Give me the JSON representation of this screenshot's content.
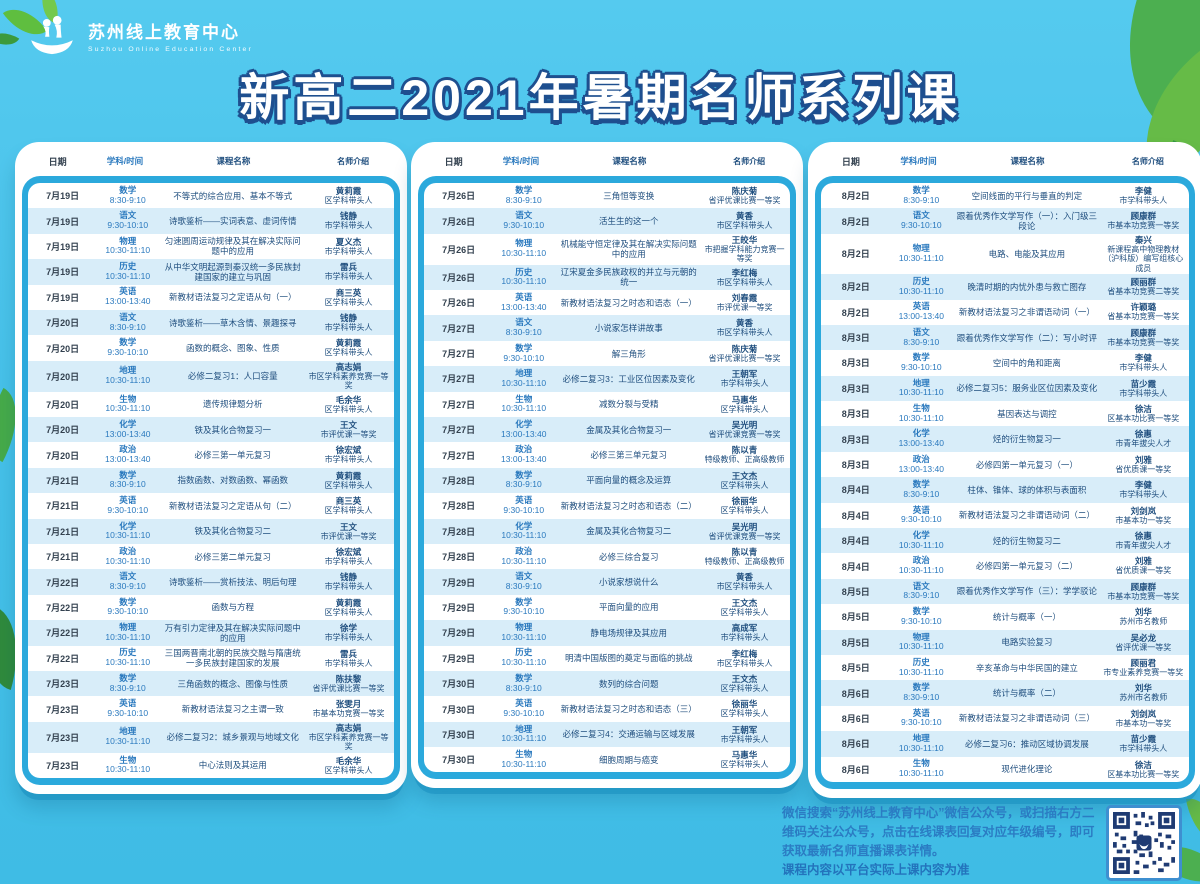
{
  "logo": {
    "title": "苏州线上教育中心",
    "subtitle": "Suzhou Online Education Center"
  },
  "title": "新高二2021年暑期名师系列课",
  "table_headers": {
    "date": "日期",
    "subject_time": "学科/时间",
    "course": "课程名称",
    "teacher": "名师介绍"
  },
  "colors": {
    "background": "#46C1E9",
    "panel_blue": "#2BA9DC",
    "row_alt": "#D8EDF9",
    "title_outline": "#1E4F8F",
    "subject_blue": "#2A79BE",
    "footer_text": "#2B7CC3"
  },
  "tables": [
    {
      "rows": [
        {
          "date": "7月19日",
          "subject": "数学",
          "time": "8:30-9:10",
          "course": "不等式的综合应用、基本不等式",
          "teacher": "黄莉霞",
          "award": "区学科带头人"
        },
        {
          "date": "7月19日",
          "subject": "语文",
          "time": "9:30-10:10",
          "course": "诗歌鉴析——实词表意、虚词传情",
          "teacher": "钱静",
          "award": "市学科带头人"
        },
        {
          "date": "7月19日",
          "subject": "物理",
          "time": "10:30-11:10",
          "course": "匀速圆周运动规律及其在解决实际问题中的应用",
          "teacher": "夏义杰",
          "award": "市学科带头人"
        },
        {
          "date": "7月19日",
          "subject": "历史",
          "time": "10:30-11:10",
          "course": "从中华文明起源到秦汉统一多民族封建国家的建立与巩固",
          "teacher": "雷兵",
          "award": "市学科带头人"
        },
        {
          "date": "7月19日",
          "subject": "英语",
          "time": "13:00-13:40",
          "course": "新教材语法复习之定语从句（一）",
          "teacher": "商三英",
          "award": "区学科带头人"
        },
        {
          "date": "7月20日",
          "subject": "语文",
          "time": "8:30-9:10",
          "course": "诗歌鉴析——草木含情、景趣探寻",
          "teacher": "钱静",
          "award": "市学科带头人"
        },
        {
          "date": "7月20日",
          "subject": "数学",
          "time": "9:30-10:10",
          "course": "函数的概念、图象、性质",
          "teacher": "黄莉霞",
          "award": "区学科带头人"
        },
        {
          "date": "7月20日",
          "subject": "地理",
          "time": "10:30-11:10",
          "course": "必修二复习1：人口容量",
          "teacher": "高志娟",
          "award": "市区学科素养竞赛一等奖"
        },
        {
          "date": "7月20日",
          "subject": "生物",
          "time": "10:30-11:10",
          "course": "遗传规律题分析",
          "teacher": "毛余华",
          "award": "区学科带头人"
        },
        {
          "date": "7月20日",
          "subject": "化学",
          "time": "13:00-13:40",
          "course": "铁及其化合物复习一",
          "teacher": "王文",
          "award": "市评优课一等奖"
        },
        {
          "date": "7月20日",
          "subject": "政治",
          "time": "13:00-13:40",
          "course": "必修三第一单元复习",
          "teacher": "徐宏斌",
          "award": "市学科带头人"
        },
        {
          "date": "7月21日",
          "subject": "数学",
          "time": "8:30-9:10",
          "course": "指数函数、对数函数、幂函数",
          "teacher": "黄莉霞",
          "award": "区学科带头人"
        },
        {
          "date": "7月21日",
          "subject": "英语",
          "time": "9:30-10:10",
          "course": "新教材语法复习之定语从句（二）",
          "teacher": "商三英",
          "award": "区学科带头人"
        },
        {
          "date": "7月21日",
          "subject": "化学",
          "time": "10:30-11:10",
          "course": "铁及其化合物复习二",
          "teacher": "王文",
          "award": "市评优课一等奖"
        },
        {
          "date": "7月21日",
          "subject": "政治",
          "time": "10:30-11:10",
          "course": "必修三第二单元复习",
          "teacher": "徐宏斌",
          "award": "市学科带头人"
        },
        {
          "date": "7月22日",
          "subject": "语文",
          "time": "8:30-9:10",
          "course": "诗歌鉴析——赏析技法、明后句理",
          "teacher": "钱静",
          "award": "市学科带头人"
        },
        {
          "date": "7月22日",
          "subject": "数学",
          "time": "9:30-10:10",
          "course": "函数与方程",
          "teacher": "黄莉霞",
          "award": "区学科带头人"
        },
        {
          "date": "7月22日",
          "subject": "物理",
          "time": "10:30-11:10",
          "course": "万有引力定律及其在解决实际问题中的应用",
          "teacher": "徐学",
          "award": "市学科带头人"
        },
        {
          "date": "7月22日",
          "subject": "历史",
          "time": "10:30-11:10",
          "course": "三国两晋南北朝的民族交融与隋唐统一多民族封建国家的发展",
          "teacher": "雷兵",
          "award": "市学科带头人"
        },
        {
          "date": "7月23日",
          "subject": "数学",
          "time": "8:30-9:10",
          "course": "三角函数的概念、图像与性质",
          "teacher": "陈扶黎",
          "award": "省评优课比赛一等奖"
        },
        {
          "date": "7月23日",
          "subject": "英语",
          "time": "9:30-10:10",
          "course": "新教材语法复习之主谓一致",
          "teacher": "张雯月",
          "award": "市基本功竞赛一等奖"
        },
        {
          "date": "7月23日",
          "subject": "地理",
          "time": "10:30-11:10",
          "course": "必修二复习2：城乡景观与地域文化",
          "teacher": "高志娟",
          "award": "市区学科素养竞赛一等奖"
        },
        {
          "date": "7月23日",
          "subject": "生物",
          "time": "10:30-11:10",
          "course": "中心法则及其运用",
          "teacher": "毛余华",
          "award": "区学科带头人"
        }
      ]
    },
    {
      "rows": [
        {
          "date": "7月26日",
          "subject": "数学",
          "time": "8:30-9:10",
          "course": "三角恒等变换",
          "teacher": "陈庆菊",
          "award": "省评优课比赛一等奖"
        },
        {
          "date": "7月26日",
          "subject": "语文",
          "time": "9:30-10:10",
          "course": "活生生的这一个",
          "teacher": "黄香",
          "award": "市区学科带头人"
        },
        {
          "date": "7月26日",
          "subject": "物理",
          "time": "10:30-11:10",
          "course": "机械能守恒定律及其在解决实际问题中的应用",
          "teacher": "王皎华",
          "award": "市把握学科能力竞赛一等奖"
        },
        {
          "date": "7月26日",
          "subject": "历史",
          "time": "10:30-11:10",
          "course": "辽宋夏金多民族政权的并立与元朝的统一",
          "teacher": "李红梅",
          "award": "市区学科带头人"
        },
        {
          "date": "7月26日",
          "subject": "英语",
          "time": "13:00-13:40",
          "course": "新教材语法复习之时态和语态（一）",
          "teacher": "刘春霞",
          "award": "市评优课一等奖"
        },
        {
          "date": "7月27日",
          "subject": "语文",
          "time": "8:30-9:10",
          "course": "小说家怎样讲故事",
          "teacher": "黄香",
          "award": "市区学科带头人"
        },
        {
          "date": "7月27日",
          "subject": "数学",
          "time": "9:30-10:10",
          "course": "解三角形",
          "teacher": "陈庆菊",
          "award": "省评优课比赛一等奖"
        },
        {
          "date": "7月27日",
          "subject": "地理",
          "time": "10:30-11:10",
          "course": "必修二复习3：工业区位因素及变化",
          "teacher": "王朝军",
          "award": "市学科带头人"
        },
        {
          "date": "7月27日",
          "subject": "生物",
          "time": "10:30-11:10",
          "course": "减数分裂与受精",
          "teacher": "马惠华",
          "award": "区学科带头人"
        },
        {
          "date": "7月27日",
          "subject": "化学",
          "time": "13:00-13:40",
          "course": "金属及其化合物复习一",
          "teacher": "吴光明",
          "award": "省评优课竞赛一等奖"
        },
        {
          "date": "7月27日",
          "subject": "政治",
          "time": "13:00-13:40",
          "course": "必修三第三单元复习",
          "teacher": "陈以青",
          "award": "特级教师、正高级教师"
        },
        {
          "date": "7月28日",
          "subject": "数学",
          "time": "8:30-9:10",
          "course": "平面向量的概念及运算",
          "teacher": "王文杰",
          "award": "区学科带头人"
        },
        {
          "date": "7月28日",
          "subject": "英语",
          "time": "9:30-10:10",
          "course": "新教材语法复习之时态和语态（二）",
          "teacher": "徐丽华",
          "award": "区学科带头人"
        },
        {
          "date": "7月28日",
          "subject": "化学",
          "time": "10:30-11:10",
          "course": "金属及其化合物复习二",
          "teacher": "吴光明",
          "award": "省评优课竞赛一等奖"
        },
        {
          "date": "7月28日",
          "subject": "政治",
          "time": "10:30-11:10",
          "course": "必修三综合复习",
          "teacher": "陈以青",
          "award": "特级教师、正高级教师"
        },
        {
          "date": "7月29日",
          "subject": "语文",
          "time": "8:30-9:10",
          "course": "小说家想说什么",
          "teacher": "黄香",
          "award": "市区学科带头人"
        },
        {
          "date": "7月29日",
          "subject": "数学",
          "time": "9:30-10:10",
          "course": "平面向量的应用",
          "teacher": "王文杰",
          "award": "区学科带头人"
        },
        {
          "date": "7月29日",
          "subject": "物理",
          "time": "10:30-11:10",
          "course": "静电场规律及其应用",
          "teacher": "高成军",
          "award": "市学科带头人"
        },
        {
          "date": "7月29日",
          "subject": "历史",
          "time": "10:30-11:10",
          "course": "明清中国版图的奠定与面临的挑战",
          "teacher": "李红梅",
          "award": "市区学科带头人"
        },
        {
          "date": "7月30日",
          "subject": "数学",
          "time": "8:30-9:10",
          "course": "数列的综合问题",
          "teacher": "王文杰",
          "award": "区学科带头人"
        },
        {
          "date": "7月30日",
          "subject": "英语",
          "time": "9:30-10:10",
          "course": "新教材语法复习之时态和语态（三）",
          "teacher": "徐丽华",
          "award": "区学科带头人"
        },
        {
          "date": "7月30日",
          "subject": "地理",
          "time": "10:30-11:10",
          "course": "必修二复习4：交通运输与区域发展",
          "teacher": "王朝军",
          "award": "市学科带头人"
        },
        {
          "date": "7月30日",
          "subject": "生物",
          "time": "10:30-11:10",
          "course": "细胞周期与癌变",
          "teacher": "马惠华",
          "award": "区学科带头人"
        }
      ]
    },
    {
      "rows": [
        {
          "date": "8月2日",
          "subject": "数学",
          "time": "8:30-9:10",
          "course": "空间线面的平行与垂直的判定",
          "teacher": "李健",
          "award": "市学科带头人"
        },
        {
          "date": "8月2日",
          "subject": "语文",
          "time": "9:30-10:10",
          "course": "跟着优秀作文学写作（一）：入门级三段论",
          "teacher": "顾康群",
          "award": "市基本功竞赛一等奖"
        },
        {
          "date": "8月2日",
          "subject": "物理",
          "time": "10:30-11:10",
          "course": "电路、电能及其应用",
          "teacher": "秦兴",
          "award": "新课程高中物理教材（沪科版）编写组核心成员"
        },
        {
          "date": "8月2日",
          "subject": "历史",
          "time": "10:30-11:10",
          "course": "晚清时期的内忧外患与救亡图存",
          "teacher": "顾丽群",
          "award": "省基本功竞赛二等奖"
        },
        {
          "date": "8月2日",
          "subject": "英语",
          "time": "13:00-13:40",
          "course": "新教材语法复习之非谓语动词（一）",
          "teacher": "许颖璐",
          "award": "省基本功竞赛一等奖"
        },
        {
          "date": "8月3日",
          "subject": "语文",
          "time": "8:30-9:10",
          "course": "跟着优秀作文学写作（二）：写小时评",
          "teacher": "顾康群",
          "award": "市基本功竞赛一等奖"
        },
        {
          "date": "8月3日",
          "subject": "数学",
          "time": "9:30-10:10",
          "course": "空间中的角和距离",
          "teacher": "李健",
          "award": "市学科带头人"
        },
        {
          "date": "8月3日",
          "subject": "地理",
          "time": "10:30-11:10",
          "course": "必修二复习5：服务业区位因素及变化",
          "teacher": "苗少霞",
          "award": "市学科带头人"
        },
        {
          "date": "8月3日",
          "subject": "生物",
          "time": "10:30-11:10",
          "course": "基因表达与调控",
          "teacher": "徐洁",
          "award": "区基本功比赛一等奖"
        },
        {
          "date": "8月3日",
          "subject": "化学",
          "time": "13:00-13:40",
          "course": "烃的衍生物复习一",
          "teacher": "徐惠",
          "award": "市青年拔尖人才"
        },
        {
          "date": "8月3日",
          "subject": "政治",
          "time": "13:00-13:40",
          "course": "必修四第一单元复习（一）",
          "teacher": "刘雅",
          "award": "省优质课一等奖"
        },
        {
          "date": "8月4日",
          "subject": "数学",
          "time": "8:30-9:10",
          "course": "柱体、锥体、球的体积与表面积",
          "teacher": "李健",
          "award": "市学科带头人"
        },
        {
          "date": "8月4日",
          "subject": "英语",
          "time": "9:30-10:10",
          "course": "新教材语法复习之非谓语动词（二）",
          "teacher": "刘剑岚",
          "award": "市基本功一等奖"
        },
        {
          "date": "8月4日",
          "subject": "化学",
          "time": "10:30-11:10",
          "course": "烃的衍生物复习二",
          "teacher": "徐惠",
          "award": "市青年拔尖人才"
        },
        {
          "date": "8月4日",
          "subject": "政治",
          "time": "10:30-11:10",
          "course": "必修四第一单元复习（二）",
          "teacher": "刘雅",
          "award": "省优质课一等奖"
        },
        {
          "date": "8月5日",
          "subject": "语文",
          "time": "8:30-9:10",
          "course": "跟着优秀作文学写作（三）：学学驳论",
          "teacher": "顾康群",
          "award": "市基本功竞赛一等奖"
        },
        {
          "date": "8月5日",
          "subject": "数学",
          "time": "9:30-10:10",
          "course": "统计与概率（一）",
          "teacher": "刘华",
          "award": "苏州市名教师"
        },
        {
          "date": "8月5日",
          "subject": "物理",
          "time": "10:30-11:10",
          "course": "电路实验复习",
          "teacher": "吴必龙",
          "award": "省评优课一等奖"
        },
        {
          "date": "8月5日",
          "subject": "历史",
          "time": "10:30-11:10",
          "course": "辛亥革命与中华民国的建立",
          "teacher": "顾丽君",
          "award": "市专业素养竞赛一等奖"
        },
        {
          "date": "8月6日",
          "subject": "数学",
          "time": "8:30-9:10",
          "course": "统计与概率（二）",
          "teacher": "刘华",
          "award": "苏州市名教师"
        },
        {
          "date": "8月6日",
          "subject": "英语",
          "time": "9:30-10:10",
          "course": "新教材语法复习之非谓语动词（三）",
          "teacher": "刘剑岚",
          "award": "市基本功一等奖"
        },
        {
          "date": "8月6日",
          "subject": "地理",
          "time": "10:30-11:10",
          "course": "必修二复习6：推动区域协调发展",
          "teacher": "苗少霞",
          "award": "市学科带头人"
        },
        {
          "date": "8月6日",
          "subject": "生物",
          "time": "10:30-11:10",
          "course": "现代进化理论",
          "teacher": "徐洁",
          "award": "区基本功比赛一等奖"
        }
      ]
    }
  ],
  "footer": {
    "paragraph": "微信搜索“苏州线上教育中心”微信公众号，或扫描右方二维码关注公众号，点击在线课表回复对应年级编号，即可获取最新名师直播课表详情。",
    "note": "课程内容以平台实际上课内容为准"
  }
}
